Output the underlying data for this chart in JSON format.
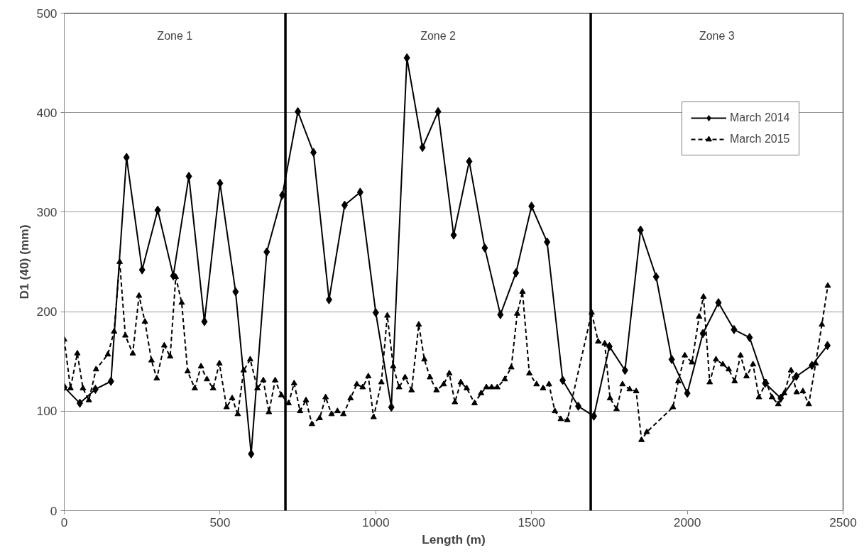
{
  "chart_data": {
    "type": "line",
    "xlabel": "Length (m)",
    "ylabel": "D1 (40) (mm)",
    "xlim": [
      0,
      2500
    ],
    "xticks": [
      0,
      500,
      1000,
      1500,
      2000,
      2500
    ],
    "ylim": [
      0,
      500
    ],
    "yticks": [
      0,
      100,
      200,
      300,
      400,
      500
    ],
    "grid": "y",
    "legend": "top right",
    "series": [
      {
        "name": "March 2014",
        "color": "#000000",
        "marker": "diamond",
        "line_style": "solid",
        "x": [
          0,
          50,
          100,
          150,
          200,
          250,
          300,
          350,
          400,
          450,
          500,
          550,
          600,
          650,
          700,
          750,
          800,
          850,
          900,
          950,
          1000,
          1050,
          1100,
          1150,
          1200,
          1250,
          1300,
          1350,
          1400,
          1450,
          1500,
          1550,
          1600,
          1650,
          1700,
          1750,
          1800,
          1850,
          1900,
          1950,
          2000,
          2050,
          2100,
          2150,
          2200,
          2250,
          2300,
          2350,
          2400,
          2450
        ],
        "values": [
          124,
          108,
          122,
          130,
          355,
          242,
          302,
          236,
          336,
          190,
          329,
          220,
          57,
          260,
          317,
          401,
          360,
          212,
          307,
          320,
          199,
          104,
          455,
          365,
          401,
          277,
          351,
          264,
          197,
          239,
          306,
          270,
          131,
          105,
          95,
          165,
          141,
          282,
          235,
          152,
          118,
          178,
          209,
          182,
          174,
          128,
          113,
          135,
          146,
          166
        ]
      },
      {
        "name": "March 2015",
        "color": "#000000",
        "marker": "triangle",
        "line_style": "dashed",
        "x": [
          0,
          20,
          42,
          60,
          79,
          102,
          140,
          160,
          178,
          196,
          220,
          240,
          259,
          280,
          297,
          321,
          340,
          358,
          377,
          396,
          419,
          439,
          458,
          478,
          498,
          521,
          539,
          557,
          576,
          597,
          620,
          639,
          657,
          677,
          697,
          720,
          738,
          757,
          776,
          795,
          820,
          839,
          858,
          877,
          896,
          919,
          939,
          958,
          976,
          993,
          1018,
          1037,
          1056,
          1075,
          1094,
          1115,
          1138,
          1156,
          1174,
          1195,
          1218,
          1236,
          1254,
          1273,
          1292,
          1317,
          1338,
          1355,
          1372,
          1390,
          1414,
          1435,
          1454,
          1471,
          1493,
          1516,
          1537,
          1556,
          1575,
          1594,
          1615,
          1693,
          1714,
          1735,
          1752,
          1773,
          1792,
          1815,
          1836,
          1853,
          1870,
          1954,
          1971,
          1992,
          2015,
          2038,
          2052,
          2072,
          2092,
          2114,
          2133,
          2152,
          2171,
          2190,
          2211,
          2230,
          2253,
          2272,
          2292,
          2311,
          2333,
          2351,
          2371,
          2390,
          2412,
          2432,
          2451
        ],
        "values": [
          172,
          123,
          158,
          123,
          111,
          142,
          157,
          180,
          250,
          176,
          158,
          216,
          190,
          151,
          133,
          166,
          155,
          235,
          209,
          140,
          123,
          145,
          132,
          123,
          148,
          104,
          113,
          97,
          141,
          152,
          123,
          131,
          99,
          131,
          116,
          108,
          128,
          100,
          111,
          87,
          93,
          114,
          97,
          100,
          97,
          113,
          127,
          124,
          135,
          94,
          129,
          196,
          145,
          124,
          134,
          121,
          187,
          152,
          134,
          121,
          127,
          138,
          109,
          129,
          123,
          108,
          118,
          124,
          124,
          124,
          132,
          144,
          198,
          220,
          138,
          127,
          123,
          127,
          100,
          92,
          91,
          199,
          170,
          168,
          113,
          102,
          127,
          122,
          120,
          71,
          79,
          104,
          130,
          156,
          149,
          195,
          215,
          129,
          152,
          147,
          142,
          130,
          156,
          135,
          147,
          114,
          129,
          114,
          107,
          118,
          141,
          119,
          120,
          107,
          148,
          187,
          226
        ]
      }
    ],
    "ref_lines": [
      {
        "axis": "x",
        "value": 710
      },
      {
        "axis": "x",
        "value": 1690
      }
    ],
    "annotations": [
      "Zone 1",
      "Zone 2",
      "Zone 3"
    ]
  }
}
